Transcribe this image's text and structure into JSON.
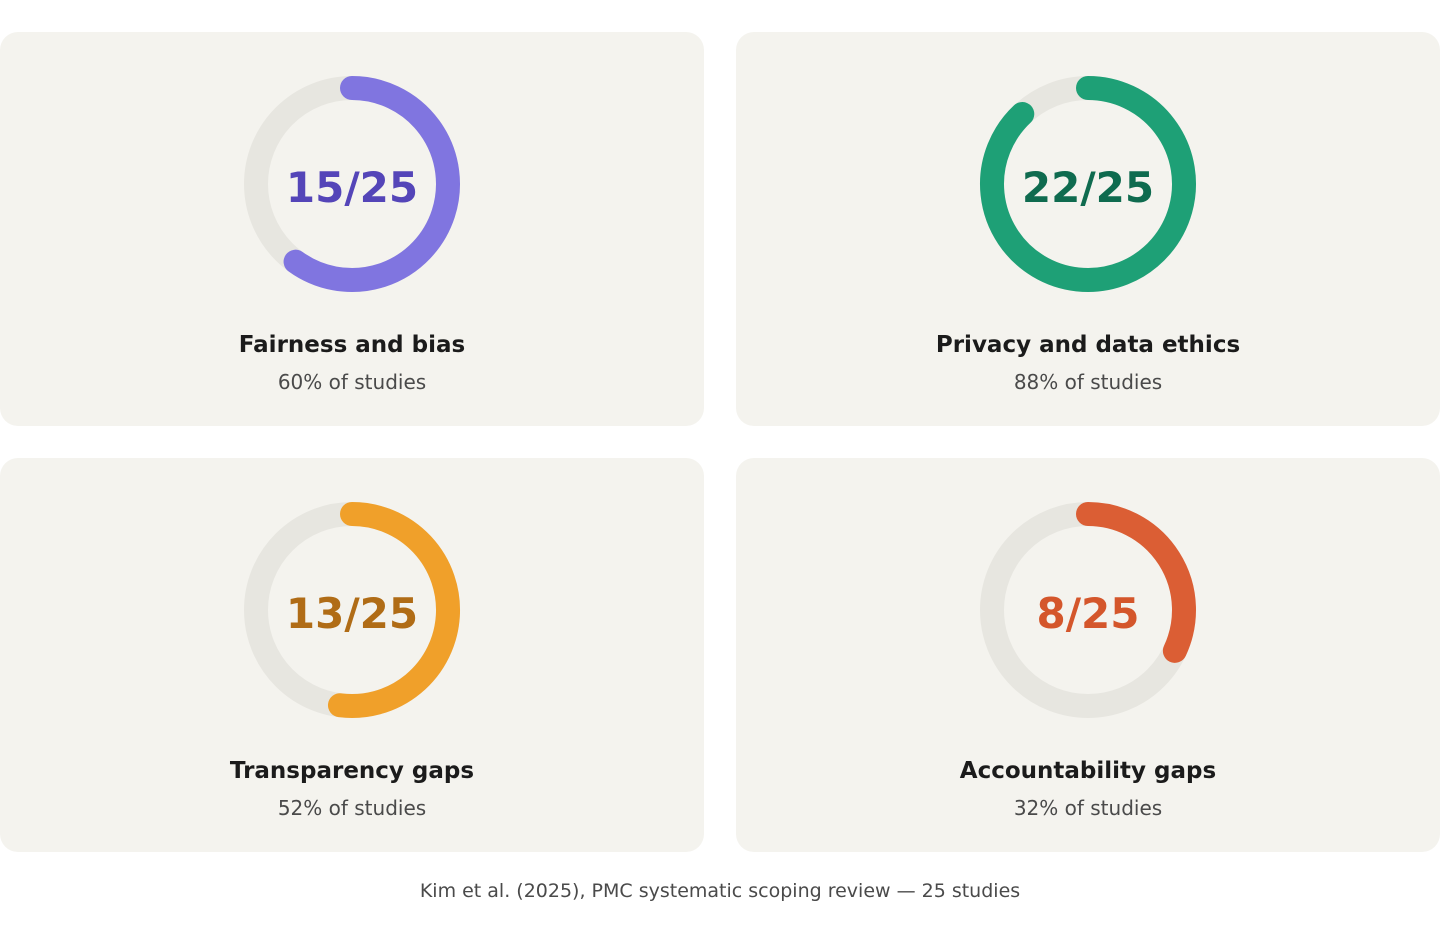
{
  "chart_data": [
    {
      "type": "pie",
      "title": "Fairness and bias",
      "subtitle": "60% of studies",
      "center_label": "15/25",
      "value": 15,
      "total": 25,
      "color": "#8075e0",
      "text_color": "#5445b8",
      "track_color": "#e7e6e0"
    },
    {
      "type": "pie",
      "title": "Privacy and data ethics",
      "subtitle": "88% of studies",
      "center_label": "22/25",
      "value": 22,
      "total": 25,
      "color": "#1ea076",
      "text_color": "#0f6b4f",
      "track_color": "#e7e6e0"
    },
    {
      "type": "pie",
      "title": "Transparency gaps",
      "subtitle": "52% of studies",
      "center_label": "13/25",
      "value": 13,
      "total": 25,
      "color": "#f0a02a",
      "text_color": "#b06c16",
      "track_color": "#e7e6e0"
    },
    {
      "type": "pie",
      "title": "Accountability gaps",
      "subtitle": "32% of studies",
      "center_label": "8/25",
      "value": 8,
      "total": 25,
      "color": "#db5e34",
      "text_color": "#d4562b",
      "track_color": "#e7e6e0"
    }
  ],
  "footer": {
    "source": "Kim et al. (2025), PMC systematic scoping review — 25 studies"
  }
}
